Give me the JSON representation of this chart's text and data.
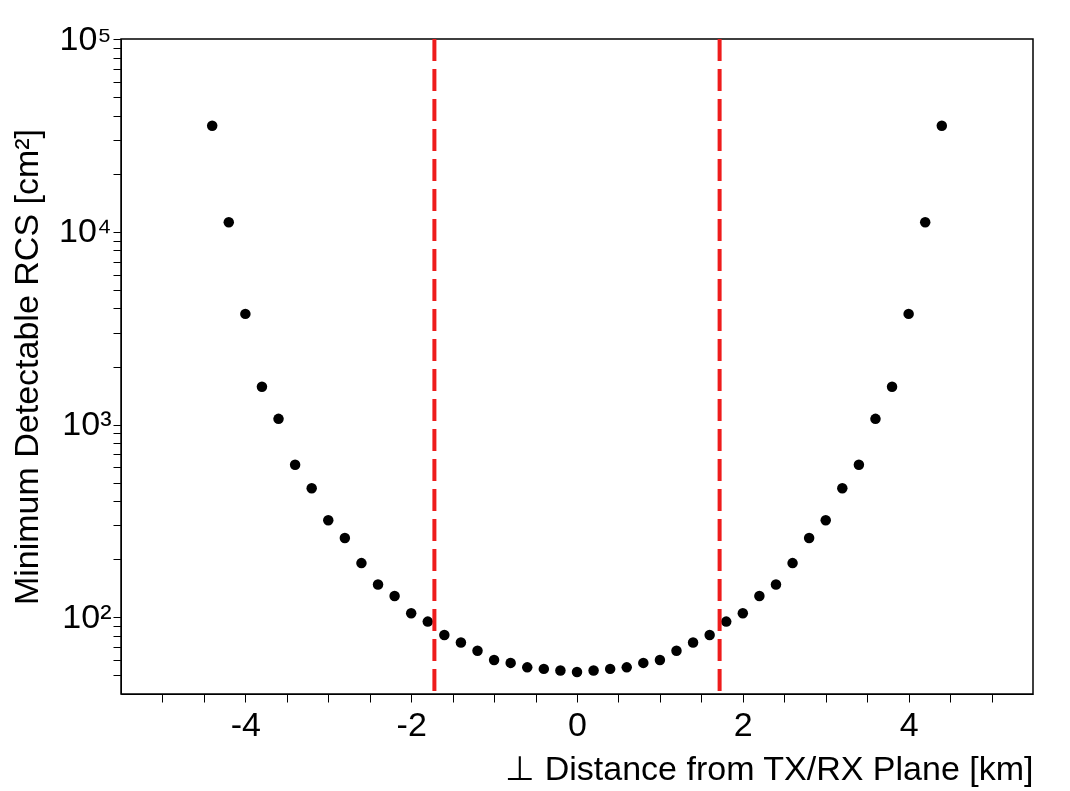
{
  "chart_data": {
    "type": "scatter",
    "xlabel": "⊥ Distance from TX/RX Plane [km]",
    "ylabel": "Minimum Detectable RCS [cm²]",
    "x": [
      -4.4,
      -4.2,
      -4.0,
      -3.8,
      -3.6,
      -3.4,
      -3.2,
      -3.0,
      -2.8,
      -2.6,
      -2.4,
      -2.2,
      -2.0,
      -1.8,
      -1.6,
      -1.4,
      -1.2,
      -1.0,
      -0.8,
      -0.6,
      -0.4,
      -0.2,
      0,
      0.2,
      0.4,
      0.6,
      0.8,
      1.0,
      1.2,
      1.4,
      1.6,
      1.8,
      2.0,
      2.2,
      2.4,
      2.6,
      2.8,
      3.0,
      3.2,
      3.4,
      3.6,
      3.8,
      4.0,
      4.2,
      4.4
    ],
    "series": [
      {
        "color": "#000000",
        "values": [
          35500,
          11200,
          3750,
          1570,
          1070,
          618,
          467,
          319,
          258,
          191,
          148,
          129,
          105,
          95,
          81,
          74,
          67,
          60,
          58,
          55,
          54,
          53,
          52,
          53,
          54,
          55,
          58,
          60,
          67,
          74,
          81,
          95,
          105,
          129,
          148,
          191,
          258,
          319,
          467,
          618,
          1070,
          1570,
          3750,
          11200,
          35500
        ]
      }
    ],
    "log": "y",
    "marker": "circle",
    "grid": false,
    "xlim": [
      -5.5,
      5.5
    ],
    "ylim": [
      40,
      100000
    ],
    "xticks": [
      {
        "value": -5,
        "label": null
      },
      {
        "value": -4.5,
        "label": null
      },
      -4,
      {
        "value": -3.5,
        "label": null
      },
      {
        "value": -3,
        "label": null
      },
      {
        "value": -2.5,
        "label": null
      },
      -2,
      {
        "value": -1.5,
        "label": null
      },
      {
        "value": -1,
        "label": null
      },
      {
        "value": -0.5,
        "label": null
      },
      0,
      {
        "value": 0.5,
        "label": null
      },
      {
        "value": 1,
        "label": null
      },
      {
        "value": 1.5,
        "label": null
      },
      2,
      {
        "value": 2.5,
        "label": null
      },
      {
        "value": 3,
        "label": null
      },
      {
        "value": 3.5,
        "label": null
      },
      4,
      {
        "value": 4.5,
        "label": null
      },
      {
        "value": 5,
        "label": null
      }
    ],
    "yticks": [
      {
        "value": 50,
        "label": null
      },
      {
        "value": 60,
        "label": null
      },
      {
        "value": 70,
        "label": null
      },
      {
        "value": 80,
        "label": null
      },
      {
        "value": 90,
        "label": null
      },
      {
        "value": 100,
        "label": "10²"
      },
      {
        "value": 200,
        "label": null
      },
      {
        "value": 300,
        "label": null
      },
      {
        "value": 400,
        "label": null
      },
      {
        "value": 500,
        "label": null
      },
      {
        "value": 600,
        "label": null
      },
      {
        "value": 700,
        "label": null
      },
      {
        "value": 800,
        "label": null
      },
      {
        "value": 900,
        "label": null
      },
      {
        "value": 1000,
        "label": "10³"
      },
      {
        "value": 2000,
        "label": null
      },
      {
        "value": 3000,
        "label": null
      },
      {
        "value": 4000,
        "label": null
      },
      {
        "value": 5000,
        "label": null
      },
      {
        "value": 6000,
        "label": null
      },
      {
        "value": 7000,
        "label": null
      },
      {
        "value": 8000,
        "label": null
      },
      {
        "value": 9000,
        "label": null
      },
      {
        "value": 10000,
        "label": "10⁴"
      },
      {
        "value": 20000,
        "label": null
      },
      {
        "value": 30000,
        "label": null
      },
      {
        "value": 40000,
        "label": null
      },
      {
        "value": 50000,
        "label": null
      },
      {
        "value": 60000,
        "label": null
      },
      {
        "value": 70000,
        "label": null
      },
      {
        "value": 80000,
        "label": null
      },
      {
        "value": 90000,
        "label": null
      },
      {
        "value": 100000,
        "label": "10⁵"
      }
    ],
    "ref_lines": [
      {
        "axis": "x",
        "value": -1.72,
        "color": "#ee1c1c",
        "line_style": "dashed"
      },
      {
        "axis": "x",
        "value": 1.72,
        "color": "#ee1c1c",
        "line_style": "dashed"
      }
    ]
  }
}
